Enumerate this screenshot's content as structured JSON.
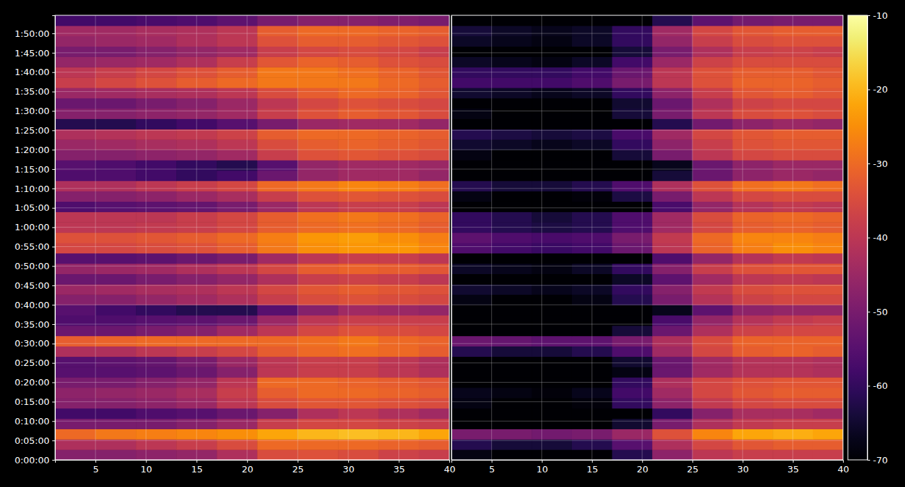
{
  "chart_data": [
    {
      "type": "heatmap",
      "x_edges": [
        1,
        5,
        9,
        13,
        17,
        21,
        25,
        29,
        33,
        37,
        40
      ],
      "y_edges": [
        0,
        160,
        320,
        480,
        640,
        800,
        960,
        1120,
        1280,
        1440,
        1600,
        1760,
        1920,
        2080,
        2240,
        2400,
        2560,
        2720,
        2880,
        3040,
        3200,
        3360,
        3520,
        3680,
        3840,
        4000,
        4160,
        4320,
        4480,
        4640,
        4800,
        4960,
        5120,
        5280,
        5440,
        5600,
        5760,
        5920,
        6080,
        6240,
        6400,
        6560,
        6720,
        6880
      ],
      "values": [
        [
          -48,
          -48,
          -47,
          -46,
          -42,
          -35,
          -34,
          -35,
          -37,
          -38
        ],
        [
          -42,
          -42,
          -40,
          -38,
          -35,
          -30,
          -30,
          -30,
          -31,
          -32
        ],
        [
          -30,
          -28,
          -27,
          -26,
          -25,
          -22,
          -20,
          -19,
          -20,
          -22
        ],
        [
          -50,
          -50,
          -50,
          -48,
          -45,
          -38,
          -36,
          -36,
          -37,
          -38
        ],
        [
          -58,
          -58,
          -56,
          -55,
          -52,
          -48,
          -42,
          -40,
          -42,
          -44
        ],
        [
          -48,
          -48,
          -47,
          -45,
          -40,
          -35,
          -33,
          -33,
          -34,
          -35
        ],
        [
          -47,
          -46,
          -45,
          -43,
          -38,
          -32,
          -30,
          -30,
          -31,
          -32
        ],
        [
          -50,
          -50,
          -48,
          -46,
          -40,
          -30,
          -30,
          -31,
          -32,
          -33
        ],
        [
          -55,
          -55,
          -54,
          -52,
          -48,
          -40,
          -38,
          -38,
          -40,
          -42
        ],
        [
          -55,
          -54,
          -53,
          -50,
          -45,
          -40,
          -38,
          -38,
          -40,
          -42
        ],
        [
          -42,
          -42,
          -40,
          -38,
          -36,
          -32,
          -30,
          -29,
          -30,
          -32
        ],
        [
          -32,
          -31,
          -30,
          -30,
          -30,
          -30,
          -29,
          -28,
          -30,
          -31
        ],
        [
          -52,
          -52,
          -50,
          -48,
          -44,
          -40,
          -36,
          -34,
          -35,
          -36
        ],
        [
          -56,
          -56,
          -55,
          -54,
          -52,
          -45,
          -40,
          -38,
          -38,
          -38
        ],
        [
          -55,
          -58,
          -60,
          -62,
          -62,
          -55,
          -48,
          -44,
          -45,
          -46
        ],
        [
          -48,
          -48,
          -46,
          -44,
          -42,
          -38,
          -35,
          -34,
          -35,
          -36
        ],
        [
          -45,
          -44,
          -43,
          -42,
          -40,
          -36,
          -33,
          -32,
          -33,
          -34
        ],
        [
          -52,
          -52,
          -50,
          -48,
          -46,
          -42,
          -38,
          -37,
          -38,
          -40
        ],
        [
          -46,
          -45,
          -44,
          -42,
          -40,
          -36,
          -32,
          -31,
          -32,
          -33
        ],
        [
          -55,
          -55,
          -54,
          -52,
          -50,
          -44,
          -40,
          -38,
          -38,
          -40
        ],
        [
          -36,
          -36,
          -35,
          -34,
          -32,
          -28,
          -25,
          -24,
          -24,
          -26
        ],
        [
          -34,
          -34,
          -33,
          -32,
          -30,
          -27,
          -24,
          -23,
          -25,
          -27
        ],
        [
          -40,
          -40,
          -39,
          -38,
          -36,
          -32,
          -30,
          -29,
          -30,
          -32
        ],
        [
          -40,
          -40,
          -40,
          -38,
          -36,
          -32,
          -29,
          -28,
          -29,
          -31
        ],
        [
          -56,
          -55,
          -54,
          -53,
          -50,
          -45,
          -40,
          -38,
          -38,
          -40
        ],
        [
          -48,
          -48,
          -47,
          -45,
          -43,
          -38,
          -34,
          -33,
          -34,
          -35
        ],
        [
          -42,
          -42,
          -40,
          -38,
          -36,
          -30,
          -28,
          -26,
          -27,
          -29
        ],
        [
          -56,
          -56,
          -58,
          -60,
          -58,
          -52,
          -46,
          -44,
          -44,
          -46
        ],
        [
          -55,
          -56,
          -58,
          -60,
          -62,
          -55,
          -46,
          -44,
          -44,
          -45
        ],
        [
          -48,
          -48,
          -47,
          -46,
          -44,
          -38,
          -34,
          -33,
          -34,
          -35
        ],
        [
          -45,
          -44,
          -43,
          -42,
          -40,
          -35,
          -32,
          -31,
          -32,
          -33
        ],
        [
          -42,
          -41,
          -40,
          -39,
          -37,
          -32,
          -30,
          -30,
          -31,
          -32
        ],
        [
          -62,
          -62,
          -60,
          -58,
          -55,
          -50,
          -45,
          -44,
          -44,
          -46
        ],
        [
          -48,
          -48,
          -47,
          -46,
          -44,
          -38,
          -34,
          -32,
          -33,
          -35
        ],
        [
          -52,
          -52,
          -50,
          -48,
          -45,
          -40,
          -36,
          -34,
          -35,
          -36
        ],
        [
          -45,
          -44,
          -43,
          -42,
          -40,
          -35,
          -32,
          -30,
          -31,
          -33
        ],
        [
          -38,
          -36,
          -34,
          -32,
          -30,
          -28,
          -28,
          -28,
          -30,
          -32
        ],
        [
          -40,
          -38,
          -36,
          -34,
          -32,
          -28,
          -28,
          -29,
          -31,
          -33
        ],
        [
          -46,
          -45,
          -44,
          -42,
          -38,
          -33,
          -31,
          -32,
          -34,
          -35
        ],
        [
          -50,
          -50,
          -48,
          -46,
          -44,
          -38,
          -36,
          -35,
          -36,
          -38
        ],
        [
          -46,
          -45,
          -44,
          -42,
          -40,
          -34,
          -32,
          -32,
          -33,
          -34
        ],
        [
          -44,
          -44,
          -43,
          -42,
          -40,
          -32,
          -30,
          -30,
          -31,
          -32
        ],
        [
          -58,
          -58,
          -57,
          -56,
          -54,
          -50,
          -48,
          -48,
          -49,
          -50
        ]
      ],
      "xlim": [
        1,
        40
      ],
      "ylim": [
        0,
        6880
      ],
      "xticks": [
        5,
        10,
        15,
        20,
        25,
        30,
        35,
        40
      ],
      "yticks": [
        {
          "value": 0,
          "label": "0:00:00"
        },
        {
          "value": 300,
          "label": "0:05:00"
        },
        {
          "value": 600,
          "label": "0:10:00"
        },
        {
          "value": 900,
          "label": "0:15:00"
        },
        {
          "value": 1200,
          "label": "0:20:00"
        },
        {
          "value": 1500,
          "label": "0:25:00"
        },
        {
          "value": 1800,
          "label": "0:30:00"
        },
        {
          "value": 2100,
          "label": "0:35:00"
        },
        {
          "value": 2400,
          "label": "0:40:00"
        },
        {
          "value": 2700,
          "label": "0:45:00"
        },
        {
          "value": 3000,
          "label": "0:50:00"
        },
        {
          "value": 3300,
          "label": "0:55:00"
        },
        {
          "value": 3600,
          "label": "1:00:00"
        },
        {
          "value": 3900,
          "label": "1:05:00"
        },
        {
          "value": 4200,
          "label": "1:10:00"
        },
        {
          "value": 4500,
          "label": "1:15:00"
        },
        {
          "value": 4800,
          "label": "1:20:00"
        },
        {
          "value": 5100,
          "label": "1:25:00"
        },
        {
          "value": 5400,
          "label": "1:30:00"
        },
        {
          "value": 5700,
          "label": "1:35:00"
        },
        {
          "value": 6000,
          "label": "1:40:00"
        },
        {
          "value": 6300,
          "label": "1:45:00"
        },
        {
          "value": 6600,
          "label": "1:50:00"
        }
      ],
      "grid": true,
      "color_range": [
        -70,
        -10
      ]
    },
    {
      "type": "heatmap",
      "x_edges": [
        1,
        5,
        9,
        13,
        17,
        21,
        25,
        29,
        33,
        37,
        40
      ],
      "y_edges": [
        0,
        160,
        320,
        480,
        640,
        800,
        960,
        1120,
        1280,
        1440,
        1600,
        1760,
        1920,
        2080,
        2240,
        2400,
        2560,
        2720,
        2880,
        3040,
        3200,
        3360,
        3520,
        3680,
        3840,
        4000,
        4160,
        4320,
        4480,
        4640,
        4800,
        4960,
        5120,
        5280,
        5440,
        5600,
        5760,
        5920,
        6080,
        6240,
        6400,
        6560,
        6720,
        6880
      ],
      "values": [
        [
          -68,
          -70,
          -70,
          -70,
          -62,
          -47,
          -40,
          -38,
          -38,
          -38
        ],
        [
          -62,
          -64,
          -64,
          -62,
          -55,
          -42,
          -36,
          -33,
          -32,
          -32
        ],
        [
          -50,
          -50,
          -51,
          -50,
          -45,
          -34,
          -26,
          -22,
          -21,
          -22
        ],
        [
          -70,
          -70,
          -70,
          -70,
          -65,
          -50,
          -42,
          -39,
          -38,
          -38
        ],
        [
          -70,
          -70,
          -70,
          -70,
          -70,
          -60,
          -48,
          -43,
          -43,
          -44
        ],
        [
          -68,
          -70,
          -70,
          -69,
          -60,
          -47,
          -39,
          -36,
          -35,
          -35
        ],
        [
          -67,
          -68,
          -69,
          -67,
          -58,
          -44,
          -36,
          -33,
          -32,
          -32
        ],
        [
          -70,
          -70,
          -70,
          -70,
          -60,
          -42,
          -36,
          -34,
          -33,
          -33
        ],
        [
          -70,
          -70,
          -70,
          -70,
          -68,
          -52,
          -44,
          -41,
          -41,
          -42
        ],
        [
          -70,
          -70,
          -70,
          -70,
          -65,
          -52,
          -44,
          -41,
          -41,
          -42
        ],
        [
          -62,
          -64,
          -64,
          -62,
          -56,
          -44,
          -36,
          -32,
          -31,
          -32
        ],
        [
          -52,
          -53,
          -54,
          -54,
          -50,
          -42,
          -35,
          -31,
          -31,
          -31
        ],
        [
          -70,
          -70,
          -70,
          -70,
          -64,
          -52,
          -42,
          -37,
          -36,
          -36
        ],
        [
          -70,
          -70,
          -70,
          -70,
          -70,
          -57,
          -46,
          -41,
          -39,
          -38
        ],
        [
          -70,
          -70,
          -70,
          -70,
          -70,
          -67,
          -54,
          -47,
          -46,
          -46
        ],
        [
          -68,
          -70,
          -70,
          -68,
          -62,
          -50,
          -41,
          -37,
          -36,
          -36
        ],
        [
          -65,
          -66,
          -67,
          -66,
          -60,
          -48,
          -39,
          -35,
          -34,
          -34
        ],
        [
          -70,
          -70,
          -70,
          -70,
          -66,
          -54,
          -44,
          -40,
          -39,
          -40
        ],
        [
          -66,
          -67,
          -68,
          -66,
          -60,
          -48,
          -38,
          -34,
          -33,
          -33
        ],
        [
          -70,
          -70,
          -70,
          -70,
          -70,
          -56,
          -46,
          -41,
          -39,
          -40
        ],
        [
          -56,
          -58,
          -59,
          -58,
          -52,
          -40,
          -31,
          -27,
          -25,
          -26
        ],
        [
          -54,
          -56,
          -57,
          -56,
          -50,
          -39,
          -30,
          -26,
          -26,
          -27
        ],
        [
          -60,
          -62,
          -63,
          -62,
          -56,
          -44,
          -36,
          -32,
          -31,
          -32
        ],
        [
          -60,
          -62,
          -64,
          -62,
          -56,
          -44,
          -35,
          -31,
          -30,
          -31
        ],
        [
          -70,
          -70,
          -70,
          -70,
          -70,
          -57,
          -46,
          -41,
          -39,
          -40
        ],
        [
          -68,
          -70,
          -70,
          -69,
          -63,
          -50,
          -40,
          -36,
          -35,
          -35
        ],
        [
          -62,
          -64,
          -64,
          -62,
          -56,
          -42,
          -34,
          -29,
          -28,
          -29
        ],
        [
          -70,
          -70,
          -70,
          -70,
          -70,
          -64,
          -52,
          -47,
          -45,
          -46
        ],
        [
          -70,
          -70,
          -70,
          -70,
          -70,
          -67,
          -52,
          -47,
          -45,
          -45
        ],
        [
          -68,
          -70,
          -70,
          -70,
          -64,
          -50,
          -40,
          -36,
          -35,
          -35
        ],
        [
          -65,
          -66,
          -67,
          -66,
          -60,
          -47,
          -38,
          -34,
          -33,
          -33
        ],
        [
          -62,
          -63,
          -64,
          -63,
          -57,
          -44,
          -36,
          -33,
          -32,
          -32
        ],
        [
          -70,
          -70,
          -70,
          -70,
          -70,
          -62,
          -51,
          -47,
          -45,
          -46
        ],
        [
          -68,
          -70,
          -70,
          -70,
          -64,
          -50,
          -40,
          -35,
          -34,
          -35
        ],
        [
          -70,
          -70,
          -70,
          -70,
          -65,
          -52,
          -42,
          -37,
          -36,
          -36
        ],
        [
          -65,
          -66,
          -67,
          -66,
          -60,
          -47,
          -38,
          -33,
          -32,
          -33
        ],
        [
          -58,
          -58,
          -58,
          -56,
          -50,
          -40,
          -34,
          -31,
          -31,
          -32
        ],
        [
          -60,
          -60,
          -60,
          -58,
          -52,
          -40,
          -34,
          -32,
          -32,
          -33
        ],
        [
          -66,
          -67,
          -68,
          -66,
          -58,
          -45,
          -37,
          -35,
          -35,
          -35
        ],
        [
          -70,
          -70,
          -70,
          -70,
          -64,
          -50,
          -42,
          -38,
          -37,
          -38
        ],
        [
          -66,
          -67,
          -68,
          -66,
          -60,
          -46,
          -38,
          -35,
          -34,
          -34
        ],
        [
          -64,
          -66,
          -67,
          -66,
          -60,
          -44,
          -36,
          -33,
          -32,
          -32
        ],
        [
          -70,
          -70,
          -70,
          -70,
          -70,
          -62,
          -54,
          -51,
          -50,
          -50
        ]
      ],
      "xlim": [
        1,
        40
      ],
      "ylim": [
        0,
        6880
      ],
      "xticks": [
        5,
        10,
        15,
        20,
        25,
        30,
        35,
        40
      ],
      "yticks": [
        0,
        300,
        600,
        900,
        1200,
        1500,
        1800,
        2100,
        2400,
        2700,
        3000,
        3300,
        3600,
        3900,
        4200,
        4500,
        4800,
        5100,
        5400,
        5700,
        6000,
        6300,
        6600
      ],
      "tick_labels": "x",
      "grid": true,
      "color_range": [
        -70,
        -10
      ],
      "color_ticks": [
        -70,
        -60,
        -50,
        -40,
        -30,
        -20,
        -10
      ]
    }
  ]
}
